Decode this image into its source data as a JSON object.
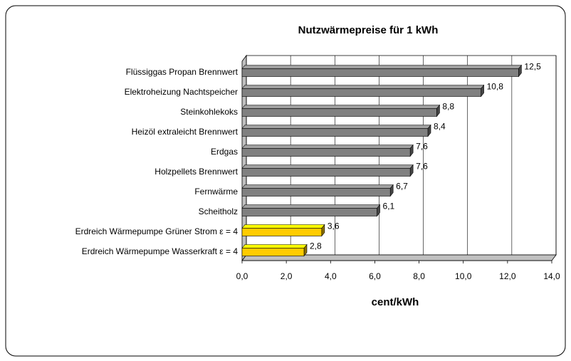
{
  "chart_data": {
    "type": "bar",
    "orientation": "horizontal",
    "title": "Nutzwärmepreise für 1 kWh",
    "x_label": "cent/kWh",
    "categories": [
      "Flüssiggas Propan Brennwert",
      "Elektroheizung Nachtspeicher",
      "Steinkohlekoks",
      "Heizöl extraleicht Brennwert",
      "Erdgas",
      "Holzpellets Brennwert",
      "Fernwärme",
      "Scheitholz",
      "Erdreich Wärmepumpe Grüner Strom ε = 4",
      "Erdreich Wärmepumpe Wasserkraft ε = 4"
    ],
    "values": [
      12.5,
      10.8,
      8.8,
      8.4,
      7.6,
      7.6,
      6.7,
      6.1,
      3.6,
      2.8
    ],
    "value_labels": [
      "12,5",
      "10,8",
      "8,8",
      "8,4",
      "7,6",
      "7,6",
      "6,7",
      "6,1",
      "3,6",
      "2,8"
    ],
    "colors": [
      "#808080",
      "#808080",
      "#808080",
      "#808080",
      "#808080",
      "#808080",
      "#808080",
      "#808080",
      "#ffcc00",
      "#ffcc00"
    ],
    "xlim": [
      0,
      14
    ],
    "xticks": [
      {
        "value": 0,
        "label": "0,0"
      },
      {
        "value": 2,
        "label": "2,0"
      },
      {
        "value": 4,
        "label": "4,0"
      },
      {
        "value": 6,
        "label": "6,0"
      },
      {
        "value": 8,
        "label": "8,0"
      },
      {
        "value": 10,
        "label": "10,0"
      },
      {
        "value": 12,
        "label": "12,0"
      },
      {
        "value": 14,
        "label": "14,0"
      }
    ],
    "grid": true
  }
}
